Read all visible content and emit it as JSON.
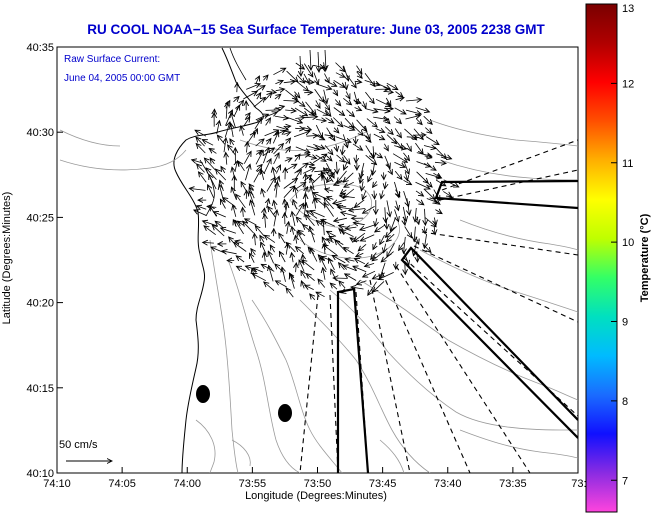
{
  "chart_data": {
    "type": "vector-field",
    "title": "RU COOL  NOAA−15  Sea Surface Temperature:  June 03, 2005 2238 GMT",
    "xlabel": "Longitude (Degrees:Minutes)",
    "ylabel": "Latitude (Degrees:Minutes)",
    "x_ticks": [
      "74:10",
      "74:05",
      "74:00",
      "73:55",
      "73:50",
      "73:45",
      "73:40",
      "73:35",
      "73:3"
    ],
    "y_ticks": [
      "40:35",
      "40:30",
      "40:25",
      "40:20",
      "40:15",
      "40:10"
    ],
    "annotations": [
      "Raw Surface Current:",
      "June 04, 2005 00:00 GMT"
    ],
    "scale_label": "50 cm/s",
    "colorbar": {
      "label": "Temperature (°C)",
      "min": 6.6,
      "max": 13,
      "ticks": [
        "7",
        "8",
        "9",
        "10",
        "11",
        "12",
        "13"
      ],
      "colors": [
        "#ff44dd",
        "#8a2be2",
        "#1010ff",
        "#1a6cff",
        "#00bbff",
        "#00e0c0",
        "#33ff66",
        "#bfff00",
        "#ffff00",
        "#ffb000",
        "#ff5000",
        "#ff0000",
        "#b00000",
        "#7a0000"
      ]
    },
    "grid": false
  }
}
